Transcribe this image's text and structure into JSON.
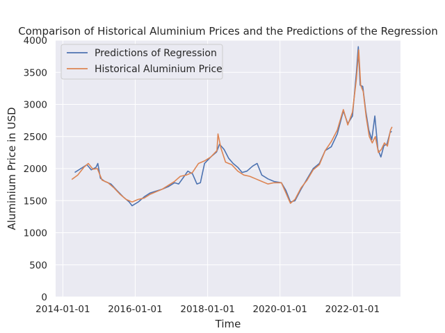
{
  "chart_data": {
    "type": "line",
    "title": "Comparison of Historical Aluminium Prices and the Predictions of the Regression",
    "xlabel": "Time",
    "ylabel": "Aluminium Price in USD",
    "xlim": [
      "2013-10-20",
      "2023-05-01"
    ],
    "ylim": [
      0,
      4000
    ],
    "x_ticks": [
      "2014-01-01",
      "2016-01-01",
      "2018-01-01",
      "2020-01-01",
      "2022-01-01"
    ],
    "y_ticks": [
      0,
      500,
      1000,
      1500,
      2000,
      2500,
      3000,
      3500,
      4000
    ],
    "grid": true,
    "legend": "top-left",
    "series": [
      {
        "name": "Predictions of Regression",
        "color": "#4c72b0",
        "points": [
          [
            "2014-05-01",
            1940
          ],
          [
            "2014-07-01",
            2000
          ],
          [
            "2014-09-01",
            2060
          ],
          [
            "2014-10-15",
            1980
          ],
          [
            "2014-12-01",
            2020
          ],
          [
            "2014-12-20",
            2080
          ],
          [
            "2015-01-15",
            1850
          ],
          [
            "2015-03-01",
            1800
          ],
          [
            "2015-05-01",
            1760
          ],
          [
            "2015-07-01",
            1660
          ],
          [
            "2015-09-01",
            1560
          ],
          [
            "2015-11-01",
            1480
          ],
          [
            "2015-12-01",
            1420
          ],
          [
            "2016-02-01",
            1480
          ],
          [
            "2016-04-01",
            1560
          ],
          [
            "2016-06-01",
            1620
          ],
          [
            "2016-08-01",
            1650
          ],
          [
            "2016-10-01",
            1680
          ],
          [
            "2016-12-01",
            1720
          ],
          [
            "2017-02-01",
            1780
          ],
          [
            "2017-03-15",
            1760
          ],
          [
            "2017-05-01",
            1860
          ],
          [
            "2017-06-15",
            1960
          ],
          [
            "2017-08-01",
            1920
          ],
          [
            "2017-09-15",
            1760
          ],
          [
            "2017-10-20",
            1780
          ],
          [
            "2017-12-01",
            2080
          ],
          [
            "2018-02-01",
            2180
          ],
          [
            "2018-04-01",
            2260
          ],
          [
            "2018-05-01",
            2380
          ],
          [
            "2018-06-15",
            2300
          ],
          [
            "2018-08-01",
            2160
          ],
          [
            "2018-09-15",
            2080
          ],
          [
            "2018-11-01",
            2020
          ],
          [
            "2018-12-15",
            1940
          ],
          [
            "2019-02-01",
            1960
          ],
          [
            "2019-04-01",
            2040
          ],
          [
            "2019-05-15",
            2080
          ],
          [
            "2019-07-01",
            1900
          ],
          [
            "2019-09-01",
            1840
          ],
          [
            "2019-11-01",
            1800
          ],
          [
            "2020-01-15",
            1780
          ],
          [
            "2020-03-01",
            1660
          ],
          [
            "2020-04-15",
            1480
          ],
          [
            "2020-06-01",
            1500
          ],
          [
            "2020-08-01",
            1680
          ],
          [
            "2020-10-01",
            1840
          ],
          [
            "2020-12-01",
            2000
          ],
          [
            "2021-02-01",
            2080
          ],
          [
            "2021-04-01",
            2280
          ],
          [
            "2021-06-01",
            2340
          ],
          [
            "2021-08-01",
            2540
          ],
          [
            "2021-10-01",
            2900
          ],
          [
            "2021-11-15",
            2700
          ],
          [
            "2022-01-01",
            2820
          ],
          [
            "2022-02-10",
            3500
          ],
          [
            "2022-03-01",
            3900
          ],
          [
            "2022-03-20",
            3300
          ],
          [
            "2022-04-15",
            3280
          ],
          [
            "2022-05-15",
            2900
          ],
          [
            "2022-06-15",
            2600
          ],
          [
            "2022-07-15",
            2450
          ],
          [
            "2022-08-15",
            2820
          ],
          [
            "2022-09-15",
            2300
          ],
          [
            "2022-10-15",
            2180
          ],
          [
            "2022-11-15",
            2360
          ],
          [
            "2022-12-15",
            2380
          ],
          [
            "2023-01-15",
            2560
          ],
          [
            "2023-02-01",
            2580
          ]
        ]
      },
      {
        "name": "Historical Aluminium Price",
        "color": "#dd8452",
        "points": [
          [
            "2014-04-01",
            1830
          ],
          [
            "2014-06-01",
            1900
          ],
          [
            "2014-08-01",
            2020
          ],
          [
            "2014-09-15",
            2080
          ],
          [
            "2014-11-01",
            1990
          ],
          [
            "2014-12-15",
            2000
          ],
          [
            "2015-02-01",
            1820
          ],
          [
            "2015-04-01",
            1780
          ],
          [
            "2015-06-01",
            1700
          ],
          [
            "2015-08-01",
            1600
          ],
          [
            "2015-10-01",
            1520
          ],
          [
            "2015-12-01",
            1480
          ],
          [
            "2016-02-01",
            1520
          ],
          [
            "2016-04-01",
            1540
          ],
          [
            "2016-06-01",
            1600
          ],
          [
            "2016-08-01",
            1640
          ],
          [
            "2016-10-01",
            1680
          ],
          [
            "2016-12-01",
            1740
          ],
          [
            "2017-02-01",
            1800
          ],
          [
            "2017-04-01",
            1880
          ],
          [
            "2017-06-01",
            1900
          ],
          [
            "2017-08-01",
            1940
          ],
          [
            "2017-10-01",
            2080
          ],
          [
            "2017-12-01",
            2120
          ],
          [
            "2018-02-01",
            2180
          ],
          [
            "2018-04-05",
            2280
          ],
          [
            "2018-04-15",
            2540
          ],
          [
            "2018-05-15",
            2320
          ],
          [
            "2018-07-01",
            2100
          ],
          [
            "2018-09-01",
            2060
          ],
          [
            "2018-11-01",
            1960
          ],
          [
            "2019-01-01",
            1900
          ],
          [
            "2019-03-01",
            1880
          ],
          [
            "2019-05-01",
            1840
          ],
          [
            "2019-07-01",
            1800
          ],
          [
            "2019-09-01",
            1760
          ],
          [
            "2019-11-01",
            1780
          ],
          [
            "2020-01-15",
            1780
          ],
          [
            "2020-03-01",
            1620
          ],
          [
            "2020-04-15",
            1460
          ],
          [
            "2020-06-01",
            1520
          ],
          [
            "2020-08-01",
            1700
          ],
          [
            "2020-10-01",
            1820
          ],
          [
            "2020-12-01",
            1980
          ],
          [
            "2021-02-01",
            2060
          ],
          [
            "2021-04-01",
            2280
          ],
          [
            "2021-06-01",
            2420
          ],
          [
            "2021-08-01",
            2600
          ],
          [
            "2021-10-01",
            2920
          ],
          [
            "2021-11-15",
            2680
          ],
          [
            "2022-01-01",
            2880
          ],
          [
            "2022-02-10",
            3400
          ],
          [
            "2022-03-05",
            3850
          ],
          [
            "2022-03-25",
            3300
          ],
          [
            "2022-04-20",
            3200
          ],
          [
            "2022-05-20",
            2800
          ],
          [
            "2022-06-20",
            2500
          ],
          [
            "2022-07-20",
            2400
          ],
          [
            "2022-08-20",
            2500
          ],
          [
            "2022-09-20",
            2250
          ],
          [
            "2022-10-20",
            2300
          ],
          [
            "2022-11-20",
            2400
          ],
          [
            "2022-12-20",
            2350
          ],
          [
            "2023-01-20",
            2600
          ],
          [
            "2023-02-05",
            2650
          ]
        ]
      }
    ]
  }
}
